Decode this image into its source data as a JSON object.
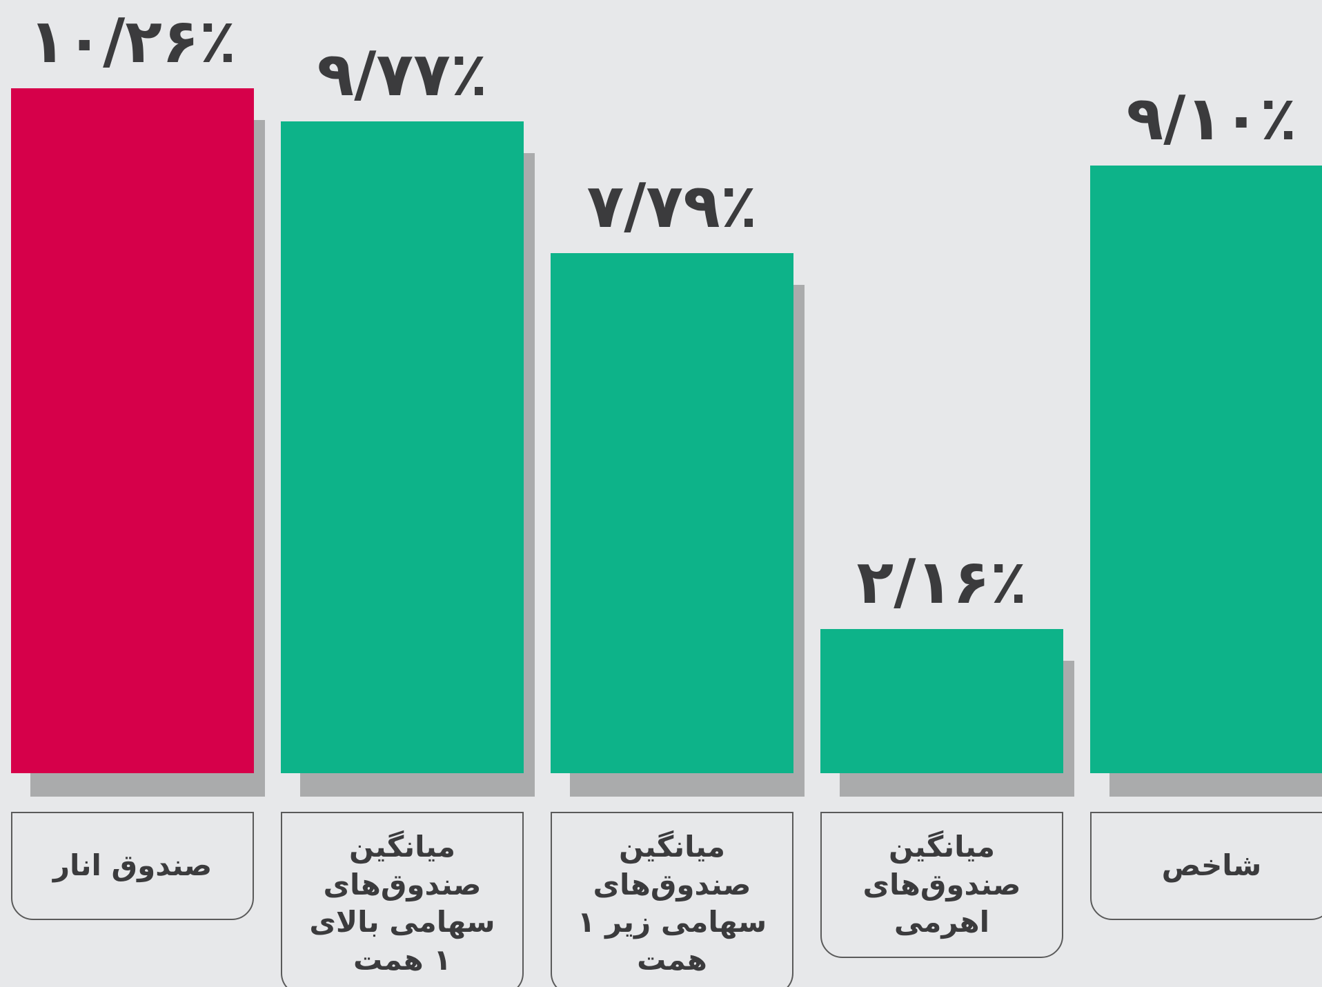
{
  "chart_data": {
    "type": "bar",
    "categories": [
      "صندوق انار",
      "میانگین صندوق‌های سهامی بالای ۱ همت",
      "میانگین صندوق‌های سهامی زیر ۱ همت",
      "میانگین صندوق‌های اهرمی",
      "شاخص"
    ],
    "values": [
      10.26,
      9.77,
      7.79,
      2.16,
      9.1
    ],
    "value_labels": [
      "۱۰/۲۶٪",
      "۹/۷۷٪",
      "۷/۷۹٪",
      "۲/۱۶٪",
      "۹/۱۰٪"
    ],
    "colors": [
      "#d6004a",
      "#0db389",
      "#0db389",
      "#0db389",
      "#0db389"
    ],
    "ylim": [
      0,
      10.5
    ]
  }
}
